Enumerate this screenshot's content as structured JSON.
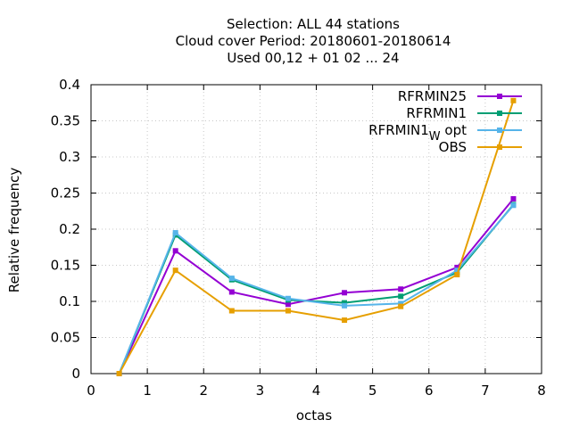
{
  "chart_data": {
    "type": "line",
    "title_lines": [
      "Selection: ALL      44 stations",
      "Cloud cover  Period: 20180601-20180614",
      "Used  00,12  + 01 02 ... 24"
    ],
    "xlabel": "octas",
    "ylabel": "Relative frequency",
    "xlim": [
      0,
      8
    ],
    "ylim": [
      0,
      0.4
    ],
    "xticks": [
      0,
      1,
      2,
      3,
      4,
      5,
      6,
      7,
      8
    ],
    "yticks": [
      0,
      0.05,
      0.1,
      0.15,
      0.2,
      0.25,
      0.3,
      0.35,
      0.4
    ],
    "ytick_labels": [
      "0",
      "0.05",
      "0.1",
      "0.15",
      "0.2",
      "0.25",
      "0.3",
      "0.35",
      "0.4"
    ],
    "grid": true,
    "legend_position": "top-right",
    "x": [
      0.5,
      1.5,
      2.5,
      3.5,
      4.5,
      5.5,
      6.5,
      7.5
    ],
    "series": [
      {
        "name": "RFRMIN25",
        "color": "#9400d3",
        "values": [
          0,
          0.17,
          0.113,
          0.096,
          0.112,
          0.117,
          0.147,
          0.242
        ]
      },
      {
        "name": "RFRMIN1",
        "color": "#009e73",
        "values": [
          0,
          0.192,
          0.13,
          0.102,
          0.098,
          0.107,
          0.14,
          0.234
        ]
      },
      {
        "name": "RFRMIN1",
        "name_sub": "W",
        "name_suffix": "opt",
        "color": "#56b4e9",
        "values": [
          0,
          0.195,
          0.132,
          0.104,
          0.094,
          0.097,
          0.143,
          0.233
        ]
      },
      {
        "name": "OBS",
        "color": "#e69f00",
        "values": [
          0,
          0.143,
          0.087,
          0.087,
          0.074,
          0.093,
          0.137,
          0.378
        ]
      }
    ]
  }
}
